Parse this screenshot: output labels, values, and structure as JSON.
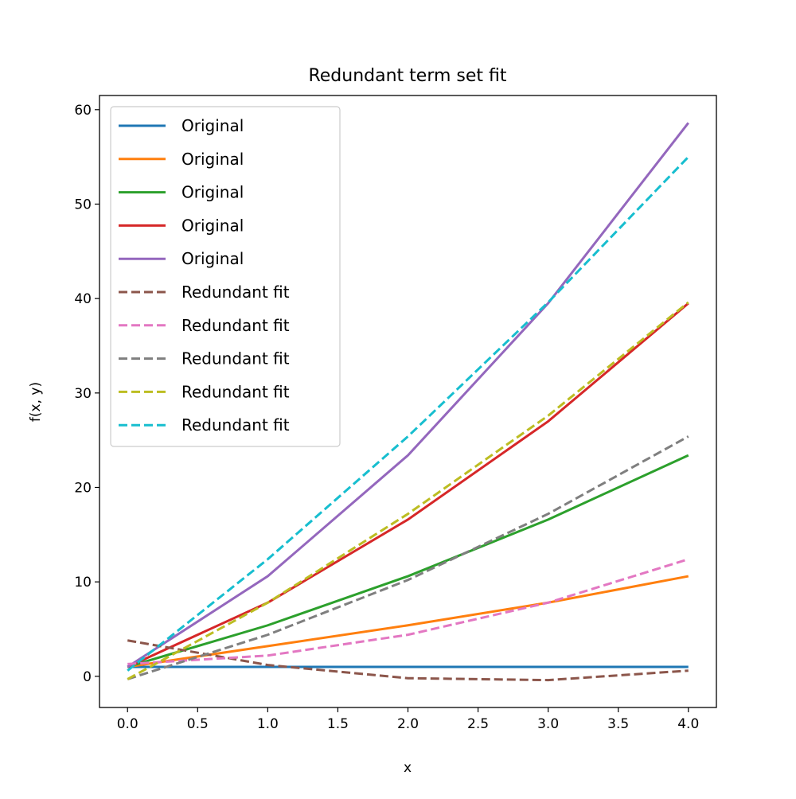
{
  "chart_data": {
    "type": "line",
    "title": "Redundant term set fit",
    "xlabel": "x",
    "ylabel": "f(x, y)",
    "xlim": [
      -0.2,
      4.2
    ],
    "ylim": [
      -3.3,
      61.5
    ],
    "xticks": [
      0.0,
      0.5,
      1.0,
      1.5,
      2.0,
      2.5,
      3.0,
      3.5,
      4.0
    ],
    "xtick_labels": [
      "0.0",
      "0.5",
      "1.0",
      "1.5",
      "2.0",
      "2.5",
      "3.0",
      "3.5",
      "4.0"
    ],
    "yticks": [
      0,
      10,
      20,
      30,
      40,
      50,
      60
    ],
    "ytick_labels": [
      "0",
      "10",
      "20",
      "30",
      "40",
      "50",
      "60"
    ],
    "grid": false,
    "legend_position": "top-left",
    "x": [
      0,
      1,
      2,
      3,
      4
    ],
    "series": [
      {
        "name": "Original",
        "color": "#1f77b4",
        "style": "solid",
        "values": [
          1,
          1,
          1,
          1,
          1
        ]
      },
      {
        "name": "Original",
        "color": "#ff7f0e",
        "style": "solid",
        "values": [
          1,
          3.2,
          5.4,
          7.8,
          10.6
        ]
      },
      {
        "name": "Original",
        "color": "#2ca02c",
        "style": "solid",
        "values": [
          1,
          5.4,
          10.6,
          16.6,
          23.4
        ]
      },
      {
        "name": "Original",
        "color": "#d62728",
        "style": "solid",
        "values": [
          1,
          7.8,
          16.6,
          27.0,
          39.5
        ]
      },
      {
        "name": "Original",
        "color": "#9467bd",
        "style": "solid",
        "values": [
          1,
          10.6,
          23.4,
          39.5,
          58.6
        ]
      },
      {
        "name": "Redundant fit",
        "color": "#8c564b",
        "style": "dashed",
        "values": [
          3.8,
          1.2,
          -0.2,
          -0.4,
          0.6
        ]
      },
      {
        "name": "Redundant fit",
        "color": "#e377c2",
        "style": "dashed",
        "values": [
          1.3,
          2.2,
          4.4,
          7.8,
          12.4
        ]
      },
      {
        "name": "Redundant fit",
        "color": "#7f7f7f",
        "style": "dashed",
        "values": [
          -0.3,
          4.4,
          10.2,
          17.2,
          25.4
        ]
      },
      {
        "name": "Redundant fit",
        "color": "#bcbd22",
        "style": "dashed",
        "values": [
          -0.3,
          7.8,
          17.2,
          27.6,
          39.6
        ]
      },
      {
        "name": "Redundant fit",
        "color": "#17becf",
        "style": "dashed",
        "values": [
          0.6,
          12.4,
          25.4,
          39.6,
          55.0
        ]
      }
    ]
  }
}
